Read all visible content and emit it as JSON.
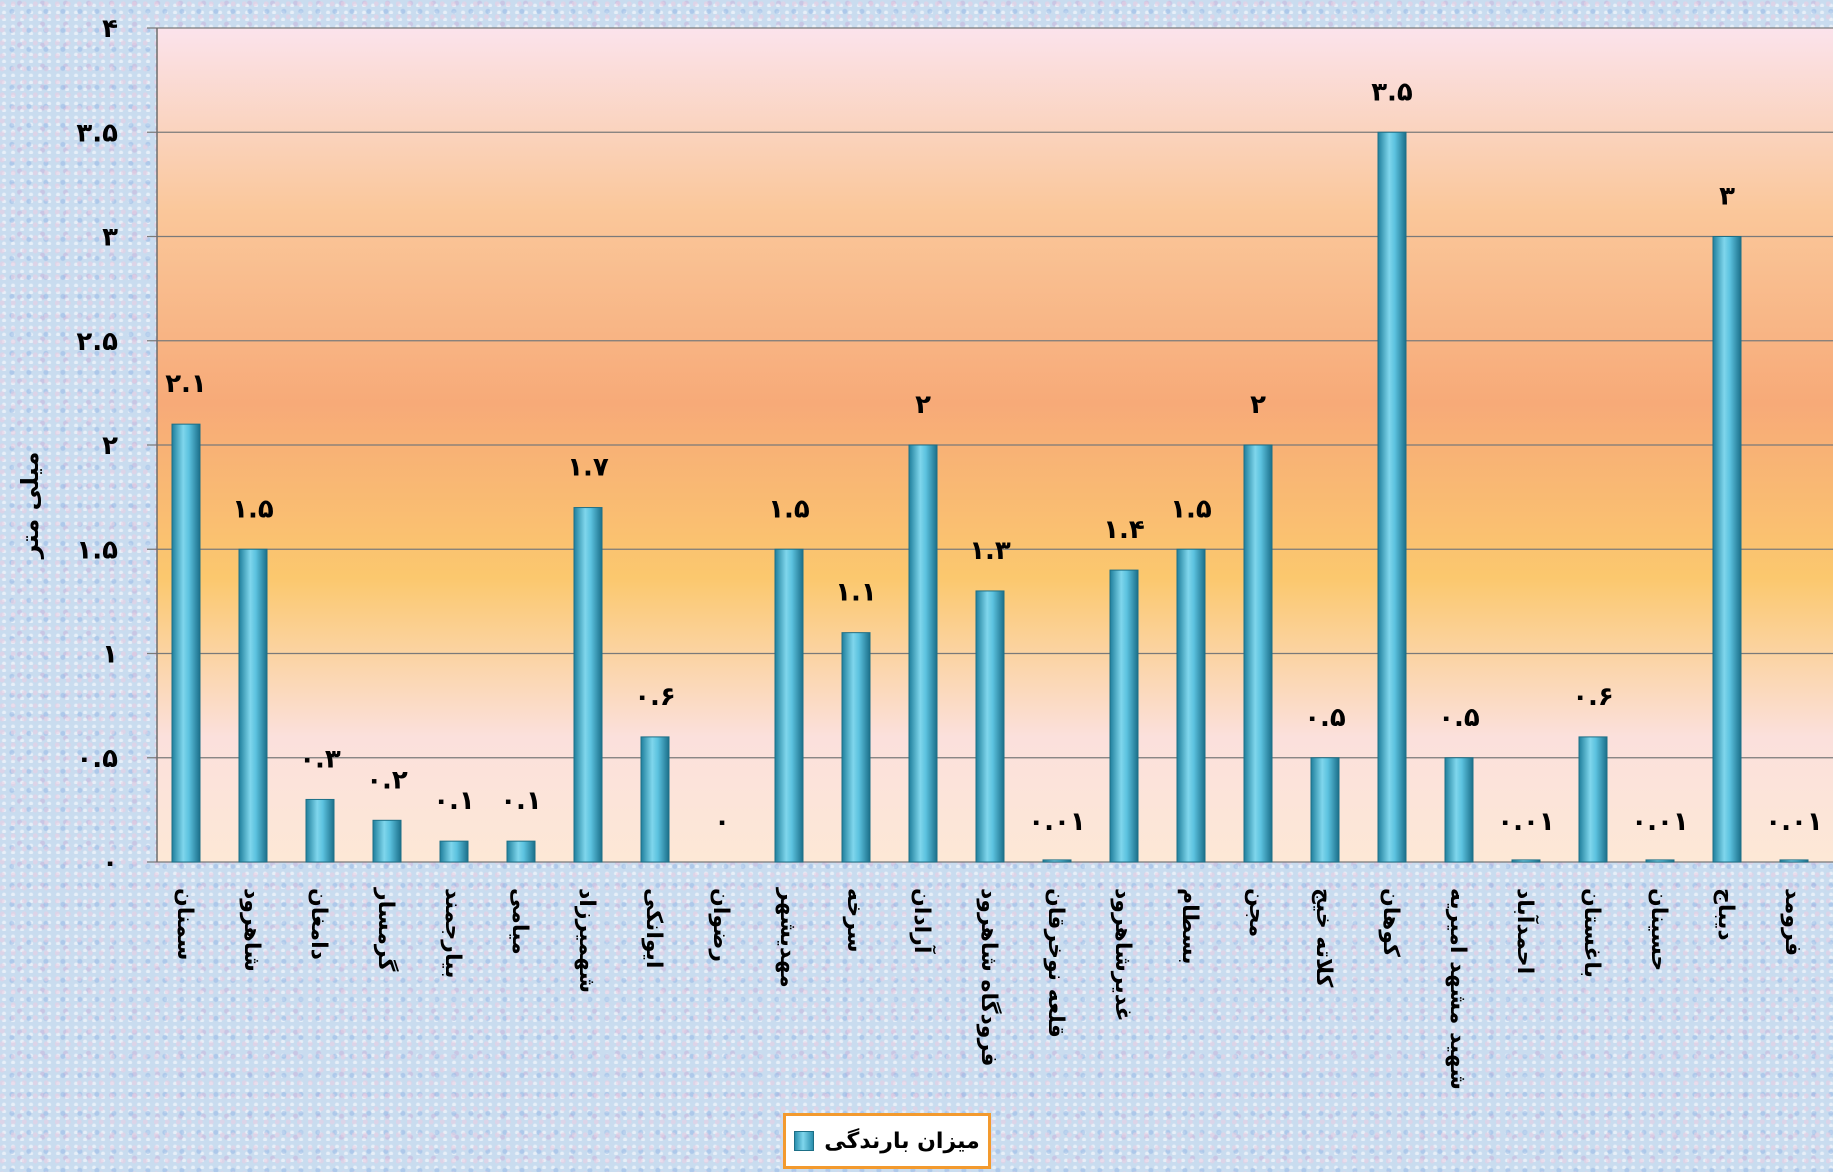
{
  "chart_data": {
    "type": "bar",
    "ylabel": "میلی متر",
    "ylim": [
      0,
      4
    ],
    "yticks": [
      0,
      0.5,
      1,
      1.5,
      2,
      2.5,
      3,
      3.5,
      4
    ],
    "ytick_labels": [
      "۰",
      "۰.۵",
      "۱",
      "۱.۵",
      "۲",
      "۲.۵",
      "۳",
      "۳.۵",
      "۴"
    ],
    "grid": true,
    "legend_position": "bottom",
    "categories": [
      "سمنان",
      "شاهرود",
      "دامغان",
      "گرمسار",
      "بیارجمند",
      "میامی",
      "شهمیرزاد",
      "ایوانکی",
      "رضوان",
      "مهدیشهر",
      "سرخه",
      "آرادان",
      "فرودگاه شاهرود",
      "قلعه نوخرقان",
      "غدیرشاهرود",
      "بسطام",
      "مجن",
      "کلاته خیج",
      "کوهان",
      "شهید مشهد امیریه",
      "احمدآباد",
      "باغستان",
      "حسینان",
      "دیباج",
      "فرومد"
    ],
    "series": [
      {
        "name": "میزان بارندگی",
        "values": [
          2.1,
          1.5,
          0.3,
          0.2,
          0.1,
          0.1,
          1.7,
          0.6,
          0,
          1.5,
          1.1,
          2,
          1.3,
          0.01,
          1.4,
          1.5,
          2,
          0.5,
          3.5,
          0.5,
          0.01,
          0.6,
          0.01,
          3,
          0.01
        ],
        "labels": [
          "۲.۱",
          "۱.۵",
          "۰.۳",
          "۰.۲",
          "۰.۱",
          "۰.۱",
          "۱.۷",
          "۰.۶",
          "۰",
          "۱.۵",
          "۱.۱",
          "۲",
          "۱.۳",
          "۰.۰۱",
          "۱.۴",
          "۱.۵",
          "۲",
          "۰.۵",
          "۳.۵",
          "۰.۵",
          "۰.۰۱",
          "۰.۶",
          "۰.۰۱",
          "۳",
          "۰.۰۱"
        ]
      }
    ]
  },
  "colors": {
    "bar_dark": "#1f7f9c",
    "bar_light": "#7fd6ec",
    "plot_top": "#fbe3ec",
    "plot_mid": "#f7aa78",
    "plot_low": "#fbc86e",
    "plot_bottom": "#fde3d3",
    "legend_border": "#f39a2e"
  }
}
